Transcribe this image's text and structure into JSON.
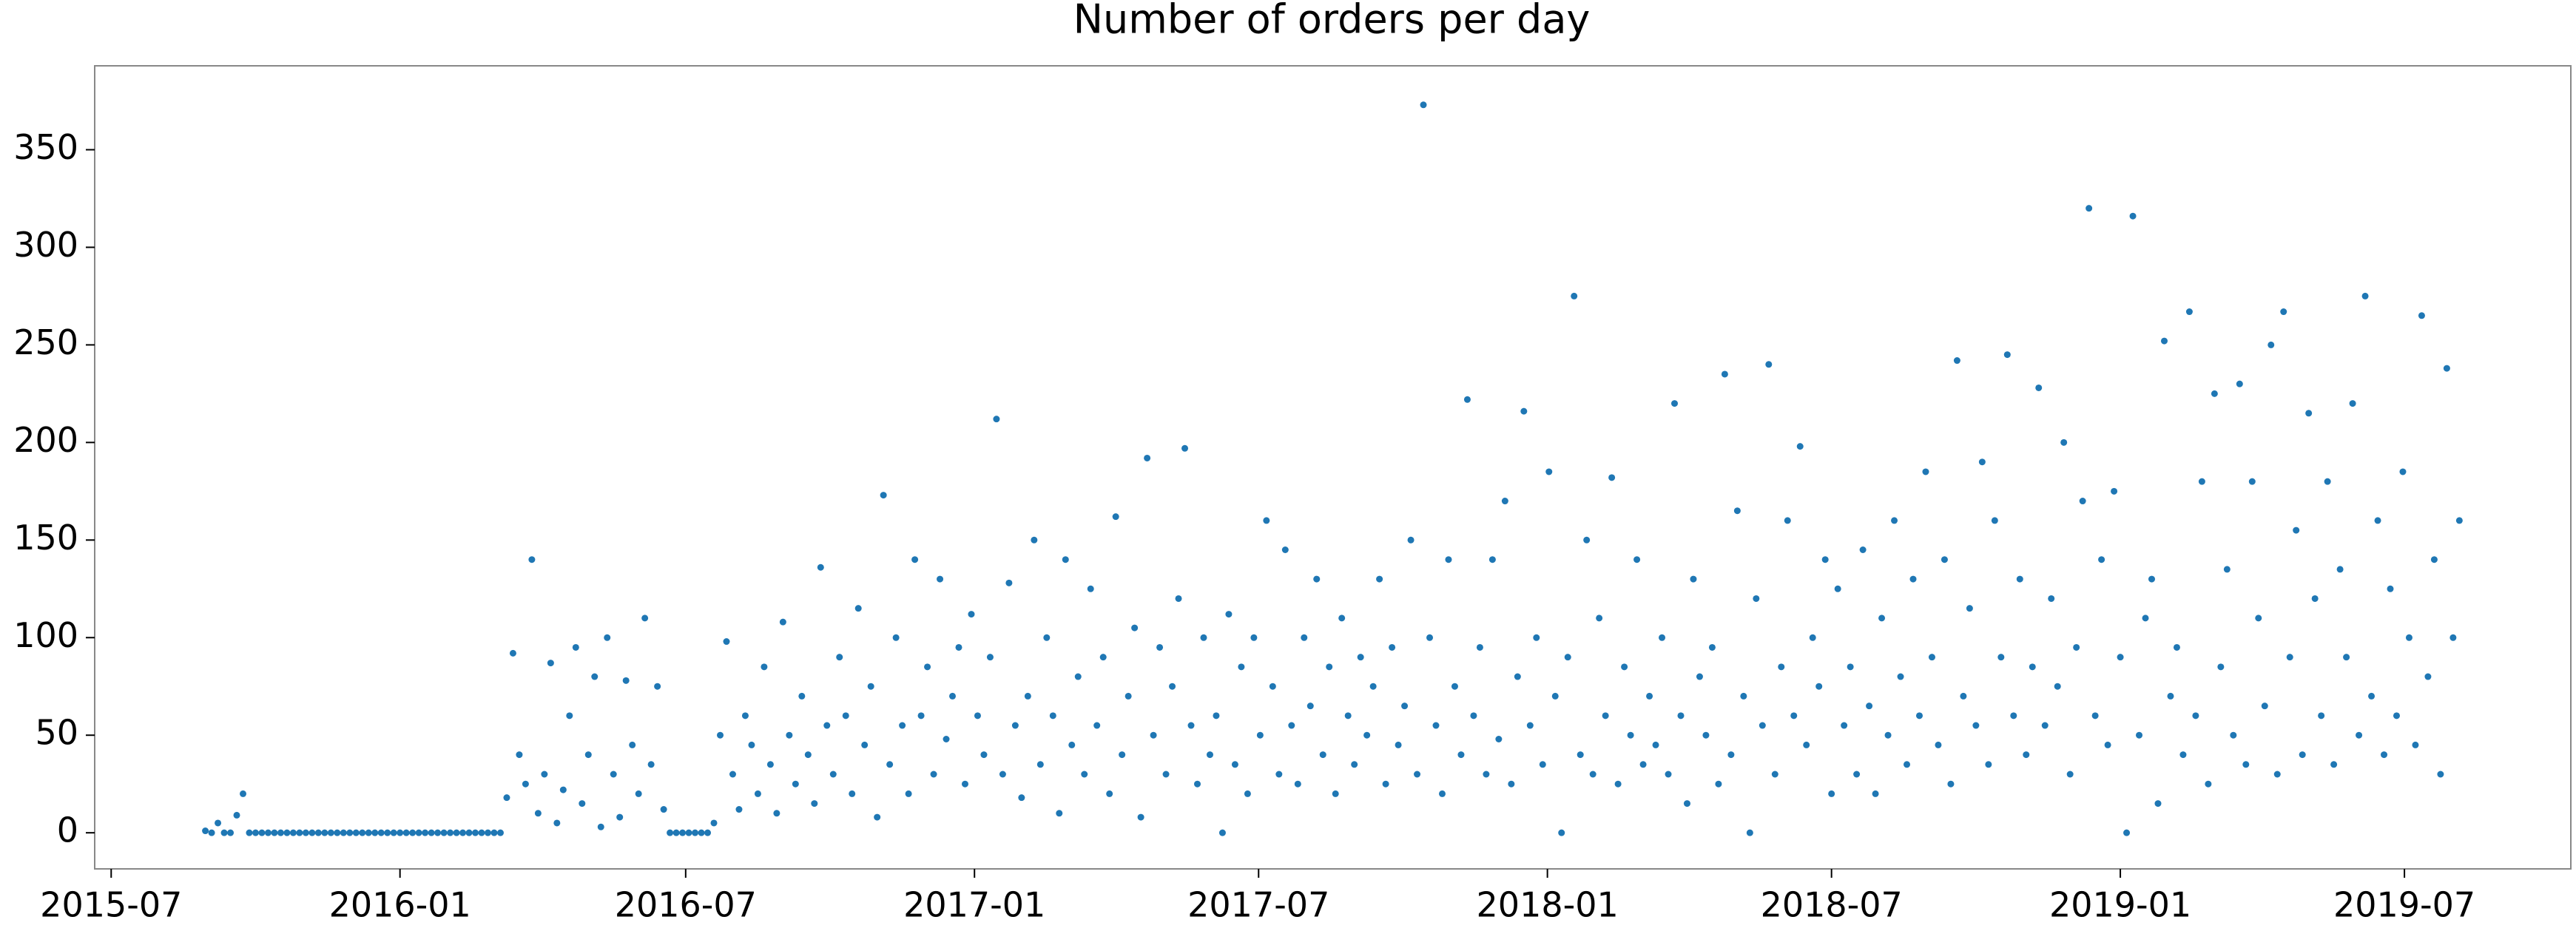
{
  "chart_data": {
    "type": "scatter",
    "title": "Number of orders per day",
    "color": "#1f77b4",
    "xlim": [
      -10.5,
      1567
    ],
    "ylim": [
      -18.5,
      393
    ],
    "xticks": [
      {
        "value": 0,
        "label": "2015-07"
      },
      {
        "value": 184,
        "label": "2016-01"
      },
      {
        "value": 366,
        "label": "2016-07"
      },
      {
        "value": 550,
        "label": "2017-01"
      },
      {
        "value": 731,
        "label": "2017-07"
      },
      {
        "value": 915,
        "label": "2018-01"
      },
      {
        "value": 1096,
        "label": "2018-07"
      },
      {
        "value": 1280,
        "label": "2019-01"
      },
      {
        "value": 1461,
        "label": "2019-07"
      }
    ],
    "yticks": [
      0,
      50,
      100,
      150,
      200,
      250,
      300,
      350
    ],
    "x": [
      60,
      64,
      68,
      72,
      76,
      80,
      84,
      88,
      92,
      96,
      100,
      104,
      108,
      112,
      116,
      120,
      124,
      128,
      132,
      136,
      140,
      144,
      148,
      152,
      156,
      160,
      164,
      168,
      172,
      176,
      180,
      184,
      188,
      192,
      196,
      200,
      204,
      208,
      212,
      216,
      220,
      224,
      228,
      232,
      236,
      240,
      244,
      248,
      252,
      256,
      260,
      264,
      268,
      272,
      276,
      280,
      284,
      288,
      292,
      296,
      300,
      304,
      308,
      312,
      316,
      320,
      324,
      328,
      332,
      336,
      340,
      344,
      348,
      352,
      356,
      360,
      364,
      368,
      372,
      376,
      380,
      384,
      388,
      392,
      396,
      400,
      404,
      408,
      412,
      416,
      420,
      424,
      428,
      432,
      436,
      440,
      444,
      448,
      452,
      456,
      460,
      464,
      468,
      472,
      476,
      480,
      484,
      488,
      492,
      496,
      500,
      504,
      508,
      512,
      516,
      520,
      524,
      528,
      532,
      536,
      540,
      544,
      548,
      552,
      556,
      560,
      564,
      568,
      572,
      576,
      580,
      584,
      588,
      592,
      596,
      600,
      604,
      608,
      612,
      616,
      620,
      624,
      628,
      632,
      636,
      640,
      644,
      648,
      652,
      656,
      660,
      664,
      668,
      672,
      676,
      680,
      684,
      688,
      692,
      696,
      700,
      704,
      708,
      712,
      716,
      720,
      724,
      728,
      732,
      736,
      740,
      744,
      748,
      752,
      756,
      760,
      764,
      768,
      772,
      776,
      780,
      784,
      788,
      792,
      796,
      800,
      804,
      808,
      812,
      816,
      820,
      824,
      828,
      832,
      836,
      840,
      844,
      848,
      852,
      856,
      860,
      864,
      868,
      872,
      876,
      880,
      884,
      888,
      892,
      896,
      900,
      904,
      908,
      912,
      916,
      920,
      924,
      928,
      932,
      936,
      940,
      944,
      948,
      952,
      956,
      960,
      964,
      968,
      972,
      976,
      980,
      984,
      988,
      992,
      996,
      1000,
      1004,
      1008,
      1012,
      1016,
      1020,
      1024,
      1028,
      1032,
      1036,
      1040,
      1044,
      1048,
      1052,
      1056,
      1060,
      1064,
      1068,
      1072,
      1076,
      1080,
      1084,
      1088,
      1092,
      1096,
      1100,
      1104,
      1108,
      1112,
      1116,
      1120,
      1124,
      1128,
      1132,
      1136,
      1140,
      1144,
      1148,
      1152,
      1156,
      1160,
      1164,
      1168,
      1172,
      1176,
      1180,
      1184,
      1188,
      1192,
      1196,
      1200,
      1204,
      1208,
      1212,
      1216,
      1220,
      1224,
      1228,
      1232,
      1236,
      1240,
      1244,
      1248,
      1252,
      1256,
      1260,
      1264,
      1268,
      1272,
      1276,
      1280,
      1284,
      1288,
      1292,
      1296,
      1300,
      1304,
      1308,
      1312,
      1316,
      1320,
      1324,
      1328,
      1332,
      1336,
      1340,
      1344,
      1348,
      1352,
      1356,
      1360,
      1364,
      1368,
      1372,
      1376,
      1380,
      1384,
      1388,
      1392,
      1396,
      1400,
      1404,
      1408,
      1412,
      1416,
      1420,
      1424,
      1428,
      1432,
      1436,
      1440,
      1444,
      1448,
      1452,
      1456,
      1460,
      1464,
      1468,
      1472,
      1476,
      1480,
      1484,
      1488,
      1492,
      1496
    ],
    "values": [
      1,
      0,
      5,
      0,
      0,
      9,
      20,
      0,
      0,
      0,
      0,
      0,
      0,
      0,
      0,
      0,
      0,
      0,
      0,
      0,
      0,
      0,
      0,
      0,
      0,
      0,
      0,
      0,
      0,
      0,
      0,
      0,
      0,
      0,
      0,
      0,
      0,
      0,
      0,
      0,
      0,
      0,
      0,
      0,
      0,
      0,
      0,
      0,
      18,
      92,
      40,
      25,
      140,
      10,
      30,
      87,
      5,
      22,
      60,
      95,
      15,
      40,
      80,
      3,
      100,
      30,
      8,
      78,
      45,
      20,
      110,
      35,
      75,
      12,
      0,
      0,
      0,
      0,
      0,
      0,
      0,
      5,
      50,
      98,
      30,
      12,
      60,
      45,
      20,
      85,
      35,
      10,
      108,
      50,
      25,
      70,
      40,
      15,
      136,
      55,
      30,
      90,
      60,
      20,
      115,
      45,
      75,
      8,
      173,
      35,
      100,
      55,
      20,
      140,
      60,
      85,
      30,
      130,
      48,
      70,
      95,
      25,
      112,
      60,
      40,
      90,
      212,
      30,
      128,
      55,
      18,
      70,
      150,
      35,
      100,
      60,
      10,
      140,
      45,
      80,
      30,
      125,
      55,
      90,
      20,
      162,
      40,
      70,
      105,
      8,
      192,
      50,
      95,
      30,
      75,
      120,
      197,
      55,
      25,
      100,
      40,
      60,
      0,
      112,
      35,
      85,
      20,
      100,
      50,
      160,
      75,
      30,
      145,
      55,
      25,
      100,
      65,
      130,
      40,
      85,
      20,
      110,
      60,
      35,
      90,
      50,
      75,
      130,
      25,
      95,
      45,
      65,
      150,
      30,
      373,
      100,
      55,
      20,
      140,
      75,
      40,
      222,
      60,
      95,
      30,
      140,
      48,
      170,
      25,
      80,
      216,
      55,
      100,
      35,
      185,
      70,
      0,
      90,
      275,
      40,
      150,
      30,
      110,
      60,
      182,
      25,
      85,
      50,
      140,
      35,
      70,
      45,
      100,
      30,
      220,
      60,
      15,
      130,
      80,
      50,
      95,
      25,
      235,
      40,
      165,
      70,
      0,
      120,
      55,
      240,
      30,
      85,
      160,
      60,
      198,
      45,
      100,
      75,
      140,
      20,
      125,
      55,
      85,
      30,
      145,
      65,
      20,
      110,
      50,
      160,
      80,
      35,
      130,
      60,
      185,
      90,
      45,
      140,
      25,
      242,
      70,
      115,
      55,
      190,
      35,
      160,
      90,
      245,
      60,
      130,
      40,
      85,
      228,
      55,
      120,
      75,
      200,
      30,
      95,
      170,
      320,
      60,
      140,
      45,
      175,
      90,
      0,
      316,
      50,
      110,
      130,
      15,
      252,
      70,
      95,
      40,
      267,
      60,
      180,
      25,
      225,
      85,
      135,
      50,
      230,
      35,
      180,
      110,
      65,
      250,
      30,
      267,
      90,
      155,
      40,
      215,
      120,
      60,
      180,
      35,
      135,
      90,
      220,
      50,
      275,
      70,
      160,
      40,
      125,
      60,
      185,
      100,
      45,
      265,
      80,
      140,
      30,
      238,
      100,
      160
    ]
  }
}
